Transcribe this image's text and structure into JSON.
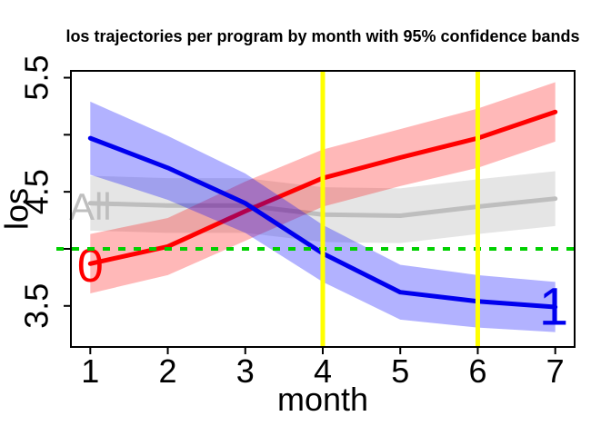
{
  "chart_data": {
    "type": "line",
    "title": "los trajectories per program by month with 95% confidence bands",
    "xlabel": "month",
    "ylabel": "los",
    "x": [
      1,
      2,
      3,
      4,
      5,
      6,
      7
    ],
    "xlim": [
      0.75,
      7.25
    ],
    "ylim": [
      3.14,
      5.56
    ],
    "x_tick_values": [
      1,
      2,
      3,
      4,
      5,
      6,
      7
    ],
    "x_tick_labels": [
      "1",
      "2",
      "3",
      "4",
      "5",
      "6",
      "7"
    ],
    "y_tick_values": [
      3.5,
      4.0,
      4.5,
      5.0,
      5.5
    ],
    "y_tick_labels": [
      "3.5",
      "",
      "4.5",
      "",
      "5.5"
    ],
    "grid": false,
    "legend_position": "none",
    "series": [
      {
        "name": "All",
        "label_text": "All",
        "color": "#BEBEBE",
        "band_fill": "rgba(190,190,190,0.40)",
        "values": [
          4.4,
          4.38,
          4.38,
          4.3,
          4.29,
          4.37,
          4.44
        ],
        "band_lower": [
          4.16,
          4.14,
          4.14,
          4.06,
          4.05,
          4.13,
          4.2
        ],
        "band_upper": [
          4.64,
          4.62,
          4.62,
          4.54,
          4.53,
          4.61,
          4.68
        ],
        "label_pos": {
          "x": 1.0,
          "y": 4.37
        },
        "label_font_px": 42
      },
      {
        "name": "program-0",
        "label_text": "0",
        "color": "#FF0000",
        "band_fill": "rgba(255,0,0,0.28)",
        "values": [
          3.87,
          4.02,
          4.33,
          4.62,
          4.8,
          4.97,
          5.2
        ],
        "band_lower": [
          3.61,
          3.77,
          4.07,
          4.37,
          4.55,
          4.71,
          4.94
        ],
        "band_upper": [
          4.13,
          4.27,
          4.59,
          4.87,
          5.05,
          5.23,
          5.46
        ],
        "label_pos": {
          "x": 1.0,
          "y": 3.85
        },
        "label_font_px": 52
      },
      {
        "name": "program-1",
        "label_text": "1",
        "color": "#0000EE",
        "band_fill": "rgba(0,0,255,0.30)",
        "values": [
          4.97,
          4.71,
          4.4,
          3.96,
          3.62,
          3.54,
          3.49
        ],
        "band_lower": [
          4.65,
          4.43,
          4.14,
          3.71,
          3.38,
          3.31,
          3.27
        ],
        "band_upper": [
          5.29,
          4.99,
          4.66,
          4.21,
          3.86,
          3.77,
          3.71
        ],
        "label_pos": {
          "x": 6.98,
          "y": 3.49
        },
        "label_font_px": 58
      }
    ],
    "reference_lines": {
      "horizontal": [
        {
          "y": 4.0,
          "color": "#00D000",
          "style": "dashed",
          "width": 4
        }
      ],
      "vertical": [
        {
          "x": 4,
          "color": "#FFFF00",
          "width": 5
        },
        {
          "x": 6,
          "color": "#FFFF00",
          "width": 5
        }
      ]
    },
    "axis_color": "#000000"
  }
}
